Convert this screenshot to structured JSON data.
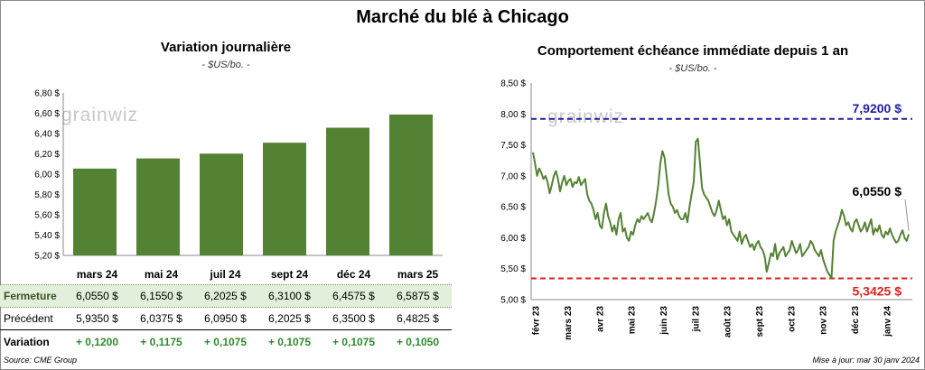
{
  "main_title": "Marché du blé à Chicago",
  "logo_text": "grainwiz",
  "left": {
    "title": "Variation journalière",
    "unit": "- $US/bo. -"
  },
  "right": {
    "title": "Comportement échéance immédiate depuis 1 an",
    "unit": "- $US/bo. -",
    "high_label": "7,9200 $",
    "low_label": "5,3425 $",
    "last_label": "6,0550 $"
  },
  "table": {
    "headers": [
      "mars 24",
      "mai 24",
      "juil 24",
      "sept 24",
      "déc 24",
      "mars 25"
    ],
    "rows": [
      {
        "label": "Fermeture",
        "values": [
          "6,0550 $",
          "6,1550 $",
          "6,2025 $",
          "6,3100 $",
          "6,4575 $",
          "6,5875 $"
        ]
      },
      {
        "label": "Précédent",
        "values": [
          "5,9350 $",
          "6,0375 $",
          "6,0950 $",
          "6,2025 $",
          "6,3500 $",
          "6,4825 $"
        ]
      },
      {
        "label": "Variation",
        "values": [
          "+ 0,1200",
          "+ 0,1175",
          "+ 0,1075",
          "+ 0,1075",
          "+ 0,1075",
          "+ 0,1050"
        ]
      }
    ]
  },
  "footer": {
    "source": "Source: CME Group",
    "updated": "Mise à jour: mar 30 janv 2024"
  },
  "colors": {
    "bar": "#548235",
    "line": "#548235",
    "high": "#1f1fa8",
    "low": "#e02020",
    "table_highlight": "#e2efda"
  },
  "chart_data": [
    {
      "type": "bar",
      "title": "Variation journalière",
      "ylabel": "- $US/bo. -",
      "categories": [
        "mars 24",
        "mai 24",
        "juil 24",
        "sept 24",
        "déc 24",
        "mars 25"
      ],
      "values": [
        6.055,
        6.155,
        6.2025,
        6.31,
        6.4575,
        6.5875
      ],
      "ylim": [
        5.2,
        6.8
      ],
      "yticks": [
        5.2,
        5.4,
        5.6,
        5.8,
        6.0,
        6.2,
        6.4,
        6.6,
        6.8
      ],
      "ytick_labels": [
        "5,20 $",
        "5,40 $",
        "5,60 $",
        "5,80 $",
        "6,00 $",
        "6,20 $",
        "6,40 $",
        "6,60 $",
        "6,80 $"
      ],
      "grid": false
    },
    {
      "type": "line",
      "title": "Comportement échéance immédiate depuis 1 an",
      "ylabel": "- $US/bo. -",
      "ylim": [
        5.0,
        8.5
      ],
      "yticks": [
        5.0,
        5.5,
        6.0,
        6.5,
        7.0,
        7.5,
        8.0,
        8.5
      ],
      "ytick_labels": [
        "5,00 $",
        "5,50 $",
        "6,00 $",
        "6,50 $",
        "7,00 $",
        "7,50 $",
        "8,00 $",
        "8,50 $"
      ],
      "xticks": [
        "févr 23",
        "mars 23",
        "avr 23",
        "mai 23",
        "juin 23",
        "juil 23",
        "août 23",
        "sept 23",
        "oct 23",
        "nov 23",
        "déc 23",
        "janv 24"
      ],
      "high": 7.92,
      "low": 5.3425,
      "last": 6.055,
      "series": [
        {
          "values": [
            7.38,
            7.2,
            7.0,
            7.12,
            7.05,
            6.95,
            7.0,
            6.9,
            6.72,
            6.85,
            7.0,
            7.08,
            6.95,
            6.75,
            6.9,
            7.0,
            6.85,
            6.92,
            6.95,
            6.82,
            6.9,
            6.88,
            6.98,
            6.85,
            6.9,
            6.95,
            6.7,
            6.6,
            6.55,
            6.45,
            6.3,
            6.4,
            6.2,
            6.15,
            6.4,
            6.55,
            6.35,
            6.25,
            6.1,
            6.2,
            6.05,
            6.3,
            6.4,
            6.1,
            6.15,
            6.0,
            5.95,
            6.1,
            6.05,
            6.2,
            6.3,
            6.25,
            6.35,
            6.3,
            6.35,
            6.4,
            6.3,
            6.25,
            6.4,
            6.6,
            6.85,
            7.2,
            7.4,
            7.3,
            7.0,
            6.7,
            6.55,
            6.5,
            6.4,
            6.45,
            6.35,
            6.3,
            6.3,
            6.4,
            6.25,
            6.5,
            6.7,
            6.9,
            7.55,
            7.6,
            7.2,
            6.8,
            6.7,
            6.65,
            6.6,
            6.5,
            6.4,
            6.35,
            6.45,
            6.6,
            6.45,
            6.3,
            6.35,
            6.2,
            6.3,
            6.1,
            6.05,
            6.0,
            5.95,
            6.1,
            5.9,
            6.0,
            6.05,
            5.95,
            5.85,
            5.9,
            5.8,
            5.9,
            5.95,
            5.85,
            5.8,
            5.7,
            5.45,
            5.6,
            5.75,
            5.7,
            5.9,
            5.65,
            5.75,
            5.8,
            5.85,
            5.7,
            5.75,
            5.8,
            5.95,
            5.85,
            5.75,
            5.8,
            5.9,
            5.7,
            5.75,
            5.8,
            5.85,
            5.95,
            5.9,
            5.8,
            5.75,
            5.7,
            5.8,
            5.65,
            5.55,
            5.45,
            5.4,
            5.35,
            5.95,
            6.1,
            6.2,
            6.3,
            6.45,
            6.35,
            6.2,
            6.25,
            6.15,
            6.1,
            6.25,
            6.3,
            6.2,
            6.1,
            6.15,
            6.25,
            6.1,
            6.2,
            6.3,
            6.05,
            6.15,
            6.1,
            6.2,
            6.05,
            6.0,
            6.1,
            6.05,
            6.15,
            6.05,
            5.98,
            5.92,
            5.95,
            6.05,
            6.12,
            6.0,
            5.95,
            6.055
          ]
        }
      ]
    }
  ]
}
